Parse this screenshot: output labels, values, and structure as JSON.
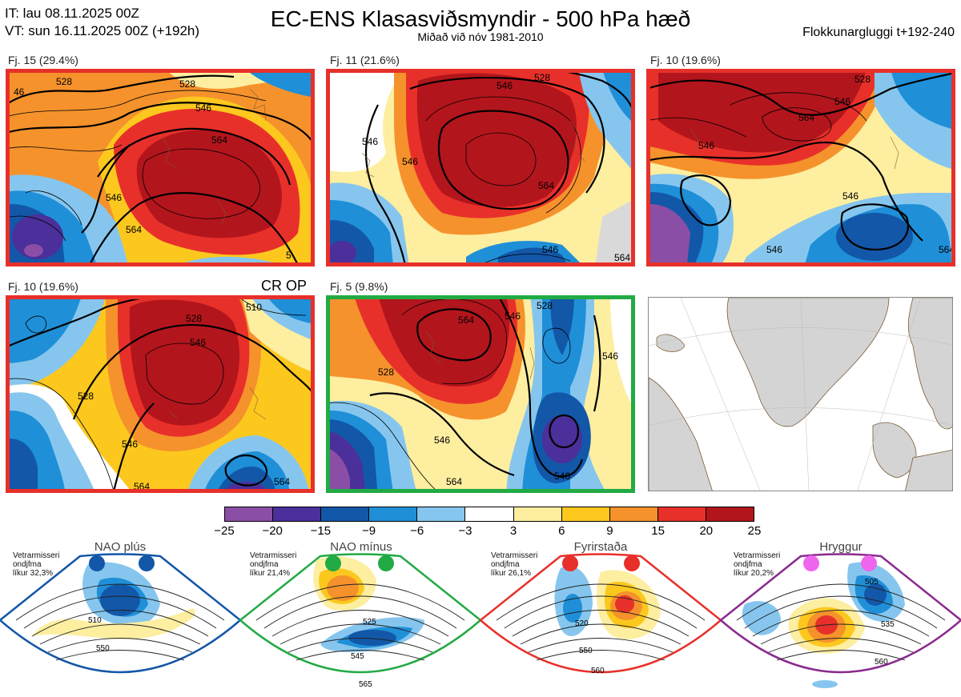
{
  "header": {
    "it_line": "IT: lau 08.11.2025 00Z",
    "vt_line": "VT: sun 16.11.2025 00Z  (+192h)",
    "title": "EC-ENS Klasasviðsmyndir - 500 hPa hæð",
    "subtitle": "Miðað við nóv 1981-2010",
    "window": "Flokkunargluggi t+192-240"
  },
  "panels": [
    {
      "label": "Fj. 15 (29.4%)",
      "contours": [
        "46",
        "528",
        "528",
        "546",
        "564",
        "546",
        "564",
        "5"
      ]
    },
    {
      "label": "Fj. 11 (21.6%)",
      "contours": [
        "528",
        "546",
        "546",
        "546",
        "564",
        "546",
        "564"
      ]
    },
    {
      "label": "Fj. 10 (19.6%)",
      "contours": [
        "546",
        "564",
        "546",
        "546",
        "546",
        "564",
        "528"
      ]
    },
    {
      "label": "Fj. 10 (19.6%)",
      "extra": "CR OP",
      "contours": [
        "528",
        "528",
        "546",
        "546",
        "564",
        "510",
        "564"
      ]
    },
    {
      "label": "Fj. 5 (9.8%)",
      "contours": [
        "564",
        "546",
        "528",
        "546",
        "564",
        "546",
        "546",
        "528"
      ]
    }
  ],
  "colorbar": {
    "colors": [
      "#8b4ea6",
      "#4b2f9a",
      "#1357a8",
      "#1f8fd8",
      "#86c6ee",
      "#ffffff",
      "#fdeea0",
      "#fcc81e",
      "#f5922c",
      "#e8302a",
      "#b3151c"
    ],
    "labels": [
      "−25",
      "−20",
      "−15",
      "−9",
      "−6",
      "−3",
      "3",
      "6",
      "9",
      "15",
      "20",
      "25"
    ]
  },
  "regimes": [
    {
      "title": "NAO plús",
      "text": [
        "Vetrarmisseri",
        "ondjfma",
        "líkur 32,3%"
      ],
      "color": "#1357a8",
      "contours": [
        "510",
        "550"
      ]
    },
    {
      "title": "NAO mínus",
      "text": [
        "Vetrarmisseri",
        "ondjfma",
        "líkur 21,4%"
      ],
      "color": "#22aa44",
      "contours": [
        "525",
        "545",
        "565"
      ]
    },
    {
      "title": "Fyrirstaða",
      "text": [
        "Vetrarmisseri",
        "ondjfma",
        "líkur 26,1%"
      ],
      "color": "#e8302a",
      "contours": [
        "520",
        "550",
        "560"
      ]
    },
    {
      "title": "Hryggur",
      "text": [
        "Vetrarmisseri",
        "ondjfma",
        "líkur 20,2%"
      ],
      "color": "#ee66ee",
      "contours": [
        "505",
        "535",
        "560"
      ]
    }
  ]
}
